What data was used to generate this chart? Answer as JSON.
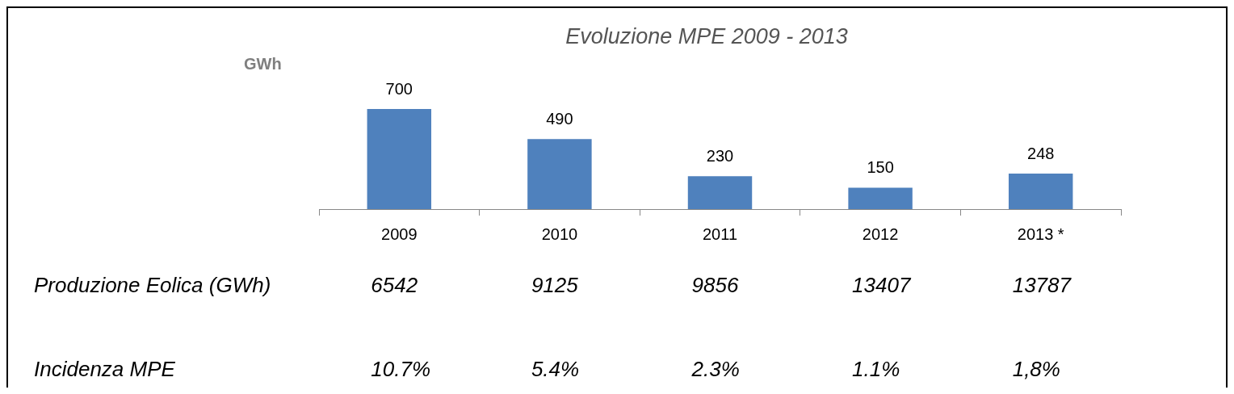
{
  "chart_data": {
    "type": "bar",
    "title": "Evoluzione MPE 2009 - 2013",
    "ylabel": "GWh",
    "categories": [
      "2009",
      "2010",
      "2011",
      "2012",
      "2013 *"
    ],
    "values": [
      700,
      490,
      230,
      150,
      248
    ],
    "color": "#4f81bd",
    "data_labels": true,
    "grid": false,
    "legend": false,
    "annotations": [
      "Produzione Eolica (GWh)",
      "6542",
      "9125",
      "9856",
      "13407",
      "13787",
      "Incidenza MPE",
      "10.7%",
      "5.4%",
      "2.3%",
      "1.1%",
      "1,8%"
    ]
  }
}
